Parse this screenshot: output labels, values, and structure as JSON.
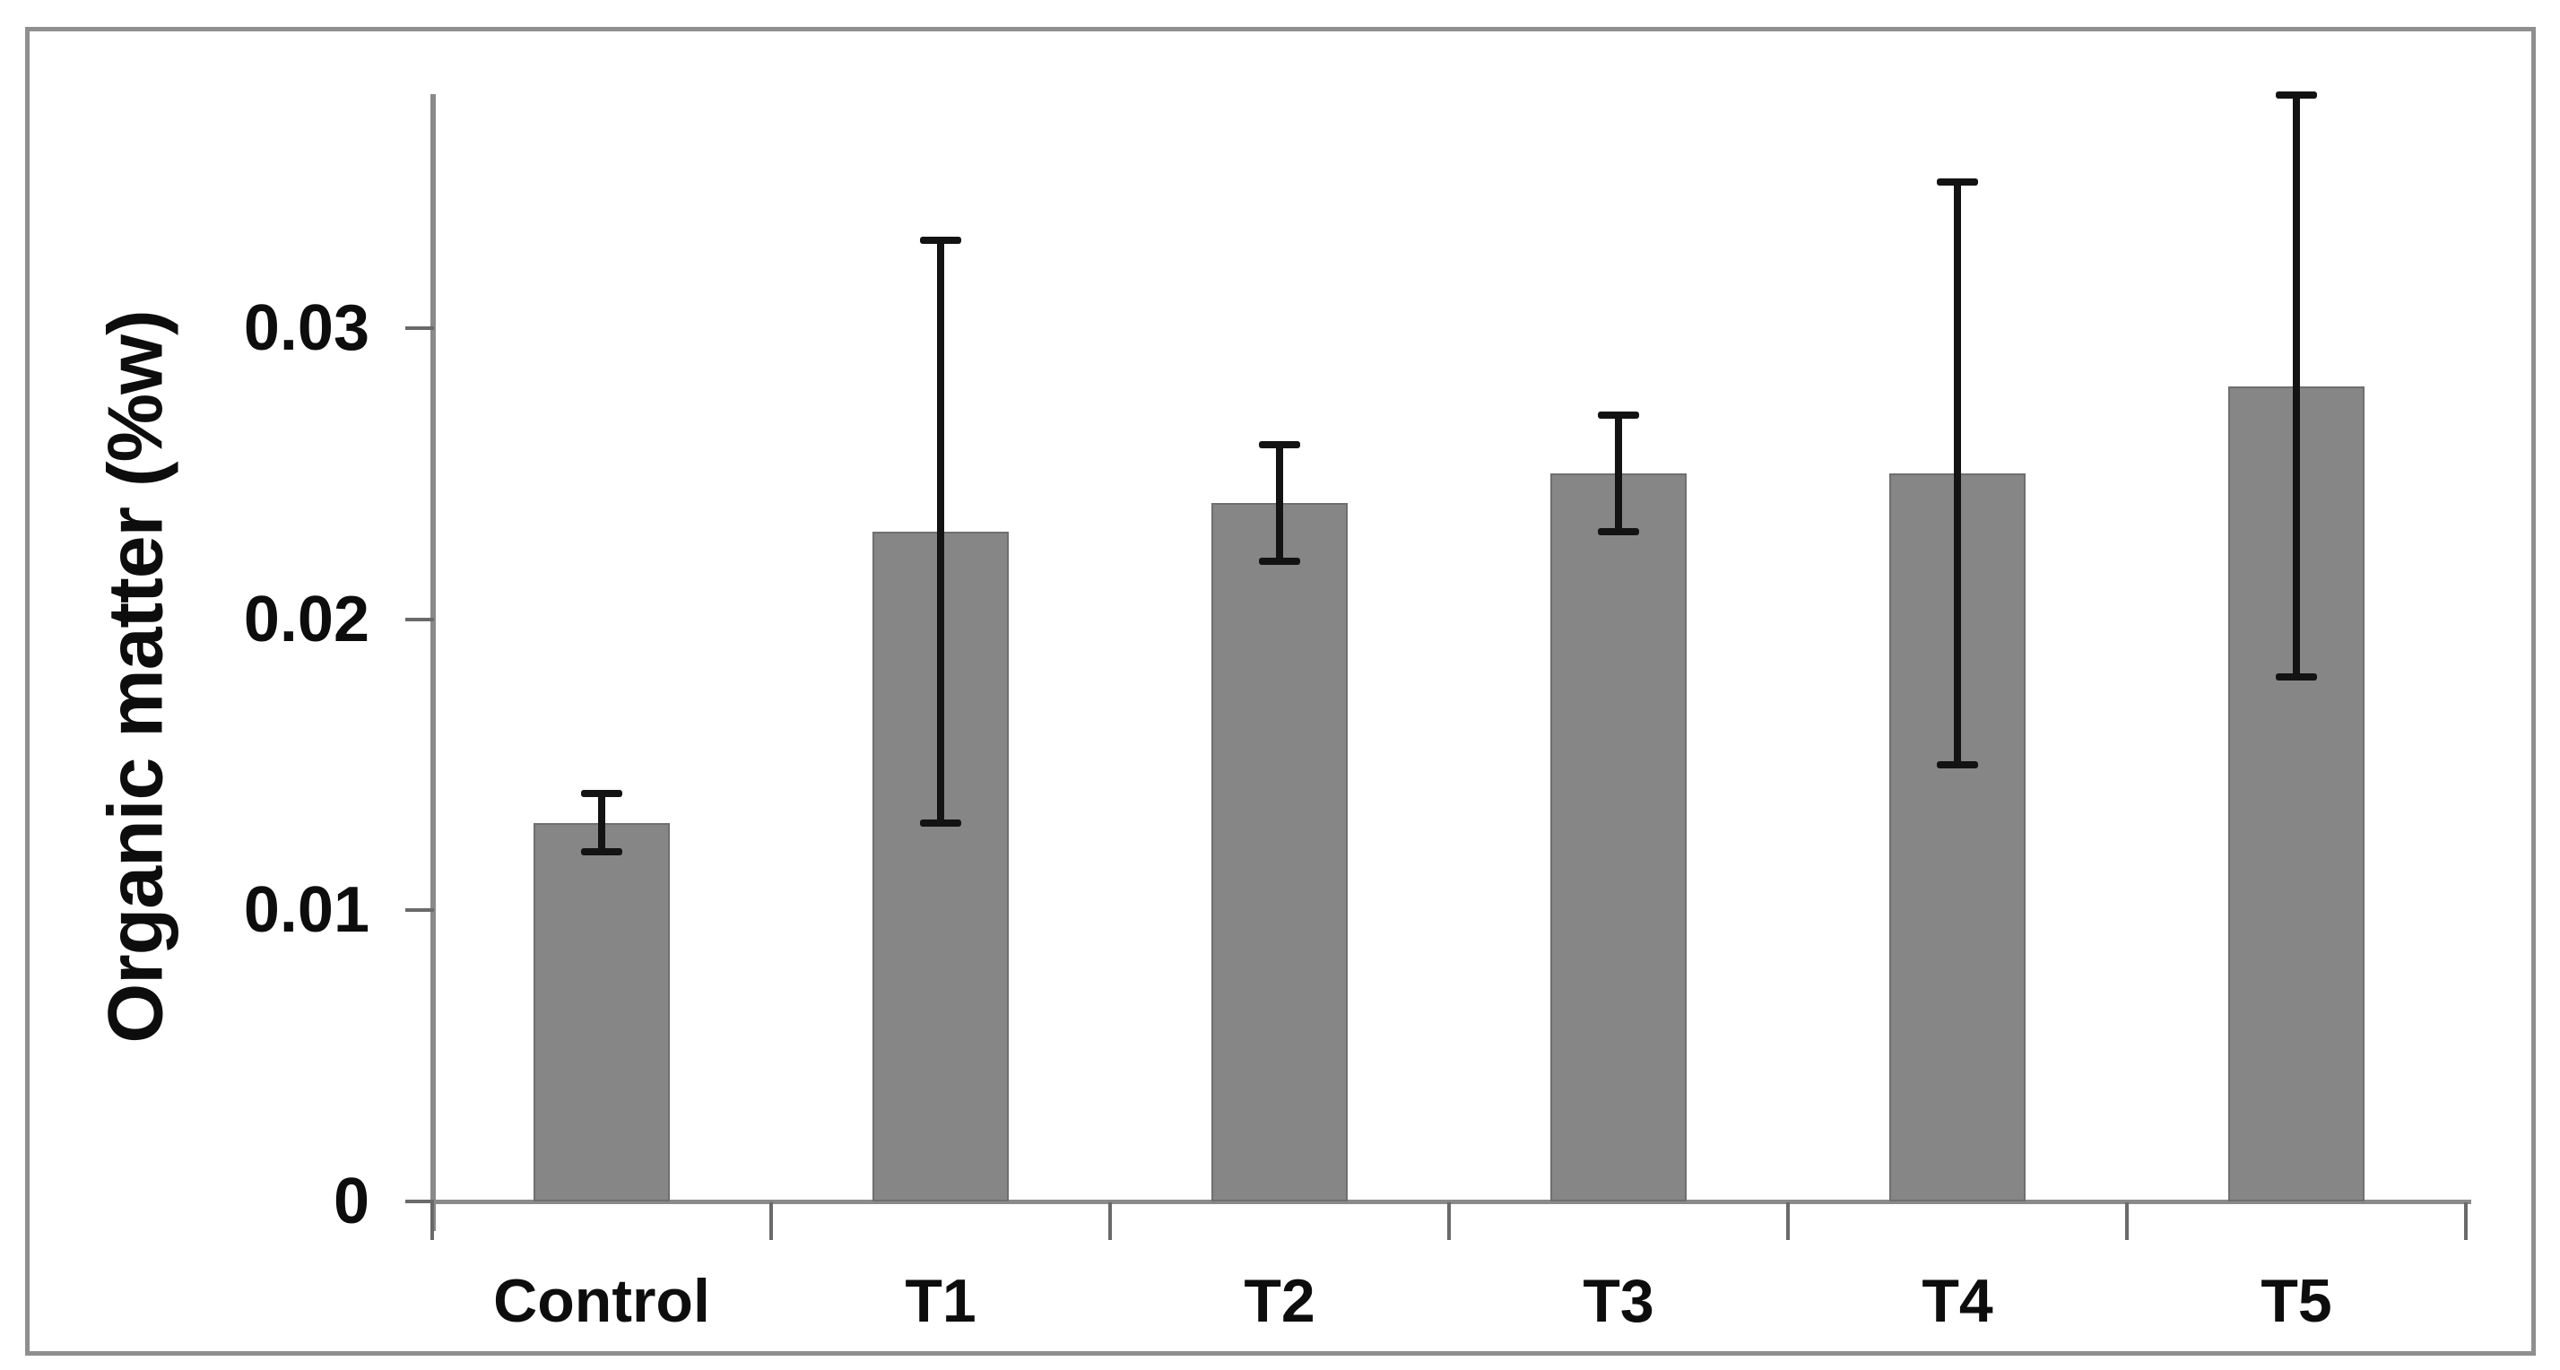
{
  "figure": {
    "background_color": "#ffffff",
    "frame_color": "#8f8f8f"
  },
  "chart_data": {
    "type": "bar",
    "title": "",
    "categories": [
      "Control",
      "T1",
      "T2",
      "T3",
      "T4",
      "T5"
    ],
    "series": [
      {
        "name": "Organic matter",
        "values": [
          0.013,
          0.023,
          0.024,
          0.025,
          0.025,
          0.028
        ],
        "error_low": [
          0.012,
          0.013,
          0.022,
          0.023,
          0.015,
          0.018
        ],
        "error_high": [
          0.014,
          0.033,
          0.026,
          0.027,
          0.035,
          0.038
        ]
      }
    ],
    "xlabel": "",
    "ylabel": "Organic matter (%w)",
    "ylim": [
      0,
      0.038
    ],
    "yticks": [
      {
        "value": 0,
        "label": "0"
      },
      {
        "value": 0.01,
        "label": "0.01"
      },
      {
        "value": 0.02,
        "label": "0.02"
      },
      {
        "value": 0.03,
        "label": "0.03"
      }
    ],
    "grid": false,
    "legend": false,
    "bar_color": "#868686",
    "bar_edge_color": "#6f6f6f",
    "error_bar_color": "#131313",
    "axis_color": "#8a8a8a",
    "tick_color": "#6a6a6a",
    "text_color": "#0d0d0d"
  }
}
